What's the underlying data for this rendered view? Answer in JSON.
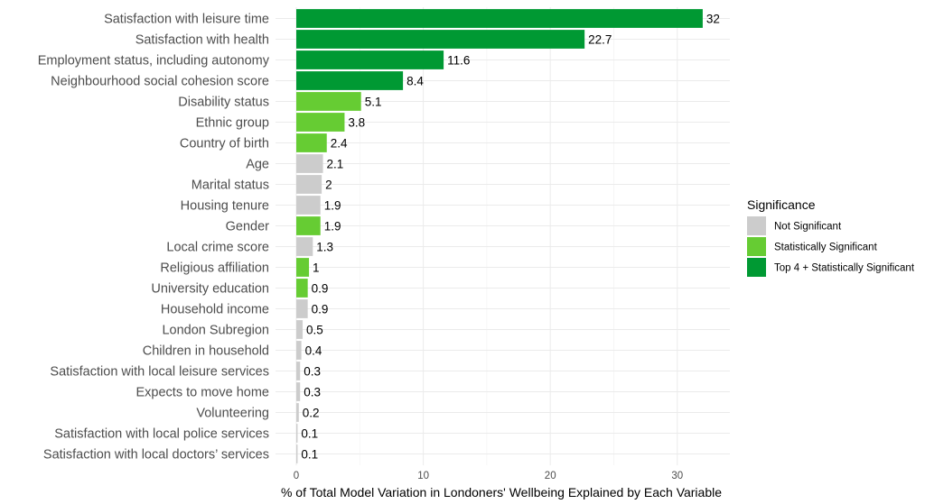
{
  "chart_data": {
    "type": "bar",
    "orientation": "horizontal",
    "xlabel": "% of Total Model Variation in Londoners' Wellbeing Explained by Each Variable",
    "xlim": [
      0,
      34
    ],
    "xticks": [
      0,
      10,
      20,
      30
    ],
    "xtick_labels": [
      "0",
      "10",
      "20",
      "30"
    ],
    "grid": true,
    "legend": {
      "title": "Significance",
      "position": "right",
      "entries": [
        {
          "label": "Not Significant",
          "color": "#cccccc"
        },
        {
          "label": "Statistically Significant",
          "color": "#66cc33"
        },
        {
          "label": "Top 4 + Statistically Significant",
          "color": "#009933"
        }
      ]
    },
    "bars": [
      {
        "category": "Satisfaction with leisure time",
        "value": 32,
        "label": "32",
        "group": 2
      },
      {
        "category": "Satisfaction with health",
        "value": 22.7,
        "label": "22.7",
        "group": 2
      },
      {
        "category": "Employment status, including autonomy",
        "value": 11.6,
        "label": "11.6",
        "group": 2
      },
      {
        "category": "Neighbourhood social cohesion score",
        "value": 8.4,
        "label": "8.4",
        "group": 2
      },
      {
        "category": "Disability status",
        "value": 5.1,
        "label": "5.1",
        "group": 1
      },
      {
        "category": "Ethnic group",
        "value": 3.8,
        "label": "3.8",
        "group": 1
      },
      {
        "category": "Country of birth",
        "value": 2.4,
        "label": "2.4",
        "group": 1
      },
      {
        "category": "Age",
        "value": 2.1,
        "label": "2.1",
        "group": 0
      },
      {
        "category": "Marital status",
        "value": 2,
        "label": "2",
        "group": 0
      },
      {
        "category": "Housing tenure",
        "value": 1.9,
        "label": "1.9",
        "group": 0
      },
      {
        "category": "Gender",
        "value": 1.9,
        "label": "1.9",
        "group": 1
      },
      {
        "category": "Local crime score",
        "value": 1.3,
        "label": "1.3",
        "group": 0
      },
      {
        "category": "Religious affiliation",
        "value": 1,
        "label": "1",
        "group": 1
      },
      {
        "category": "University education",
        "value": 0.9,
        "label": "0.9",
        "group": 1
      },
      {
        "category": "Household income",
        "value": 0.9,
        "label": "0.9",
        "group": 0
      },
      {
        "category": "London Subregion",
        "value": 0.5,
        "label": "0.5",
        "group": 0
      },
      {
        "category": "Children in household",
        "value": 0.4,
        "label": "0.4",
        "group": 0
      },
      {
        "category": "Satisfaction with local leisure services",
        "value": 0.3,
        "label": "0.3",
        "group": 0
      },
      {
        "category": "Expects to move home",
        "value": 0.3,
        "label": "0.3",
        "group": 0
      },
      {
        "category": "Volunteering",
        "value": 0.2,
        "label": "0.2",
        "group": 0
      },
      {
        "category": "Satisfaction with local police services",
        "value": 0.1,
        "label": "0.1",
        "group": 0
      },
      {
        "category": "Satisfaction with local doctors’ services",
        "value": 0.1,
        "label": "0.1",
        "group": 0
      }
    ]
  }
}
